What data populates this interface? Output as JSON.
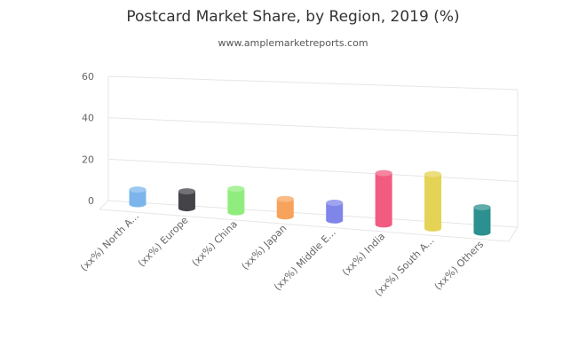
{
  "chart_data": {
    "type": "bar",
    "title": "Postcard Market Share, by Region, 2019 (%)",
    "subtitle": "www.amplemarketreports.com",
    "categories": [
      "(xx%) North A...",
      "(xx%) Europe",
      "(xx%) China",
      "(xx%) Japan",
      "(xx%) Middle E...",
      "(xx%) India",
      "(xx%) South A...",
      "(xx%) Others"
    ],
    "values": [
      7,
      8,
      11,
      8,
      8,
      23,
      24,
      11
    ],
    "colors": [
      "#7cb5ec",
      "#434348",
      "#90ed7d",
      "#f7a35c",
      "#8085e9",
      "#f15c80",
      "#e4d354",
      "#2b908f"
    ],
    "yticks": [
      "0",
      "20",
      "40",
      "60"
    ],
    "ylim": [
      0,
      60
    ],
    "grid": true,
    "legend": "none",
    "style": "3d-cylinder"
  }
}
